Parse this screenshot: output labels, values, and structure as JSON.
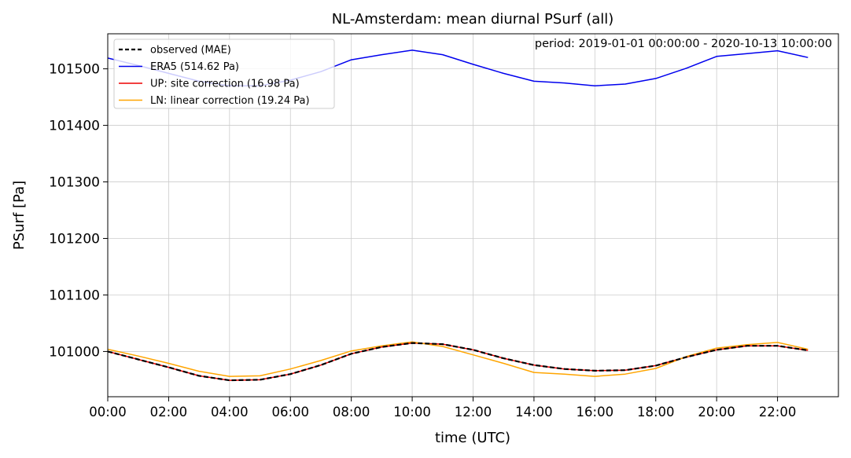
{
  "chart_data": {
    "type": "line",
    "title": "NL-Amsterdam: mean diurnal PSurf (all)",
    "annotation": "period: 2019-01-01 00:00:00 - 2020-10-13 10:00:00",
    "xlabel": "time (UTC)",
    "ylabel": "PSurf [Pa]",
    "xlim": [
      0,
      24
    ],
    "ylim": [
      100920,
      101562
    ],
    "xticks": [
      0,
      2,
      4,
      6,
      8,
      10,
      12,
      14,
      16,
      18,
      20,
      22
    ],
    "xtick_labels": [
      "00:00",
      "02:00",
      "04:00",
      "06:00",
      "08:00",
      "10:00",
      "12:00",
      "14:00",
      "16:00",
      "18:00",
      "20:00",
      "22:00"
    ],
    "yticks": [
      101000,
      101100,
      101200,
      101300,
      101400,
      101500
    ],
    "ytick_labels": [
      "101000",
      "101100",
      "101200",
      "101300",
      "101400",
      "101500"
    ],
    "grid": true,
    "legend_position": "upper-left",
    "x": [
      0,
      1,
      2,
      3,
      4,
      5,
      6,
      7,
      8,
      9,
      10,
      11,
      12,
      13,
      14,
      15,
      16,
      17,
      18,
      19,
      20,
      21,
      22,
      23
    ],
    "series": [
      {
        "name": "observed (MAE)",
        "color": "#000000",
        "style": "dashed",
        "values": [
          101000,
          100986,
          100972,
          100957,
          100949,
          100950,
          100960,
          100976,
          100996,
          101008,
          101015,
          101013,
          101003,
          100988,
          100976,
          100969,
          100966,
          100967,
          100975,
          100990,
          101003,
          101010,
          101010,
          101002
        ]
      },
      {
        "name": "ERA5 (514.62 Pa)",
        "color": "#0000ee",
        "style": "solid",
        "values": [
          101519,
          101506,
          101492,
          101478,
          101470,
          101470,
          101480,
          101495,
          101516,
          101525,
          101533,
          101525,
          101508,
          101492,
          101478,
          101475,
          101470,
          101473,
          101483,
          101501,
          101522,
          101527,
          101532,
          101520
        ]
      },
      {
        "name": "UP: site correction (16.98 Pa)",
        "color": "#ee0000",
        "style": "solid",
        "values": [
          101000,
          100986,
          100972,
          100957,
          100949,
          100950,
          100960,
          100976,
          100996,
          101008,
          101015,
          101013,
          101003,
          100988,
          100976,
          100969,
          100966,
          100967,
          100975,
          100990,
          101003,
          101010,
          101010,
          101002
        ]
      },
      {
        "name": "LN: linear correction (19.24 Pa)",
        "color": "#ffa500",
        "style": "solid",
        "values": [
          101004,
          100992,
          100979,
          100965,
          100956,
          100957,
          100969,
          100984,
          101001,
          101010,
          101017,
          101009,
          100994,
          100979,
          100963,
          100960,
          100956,
          100960,
          100970,
          100991,
          101006,
          101012,
          101016,
          101004
        ]
      }
    ]
  }
}
